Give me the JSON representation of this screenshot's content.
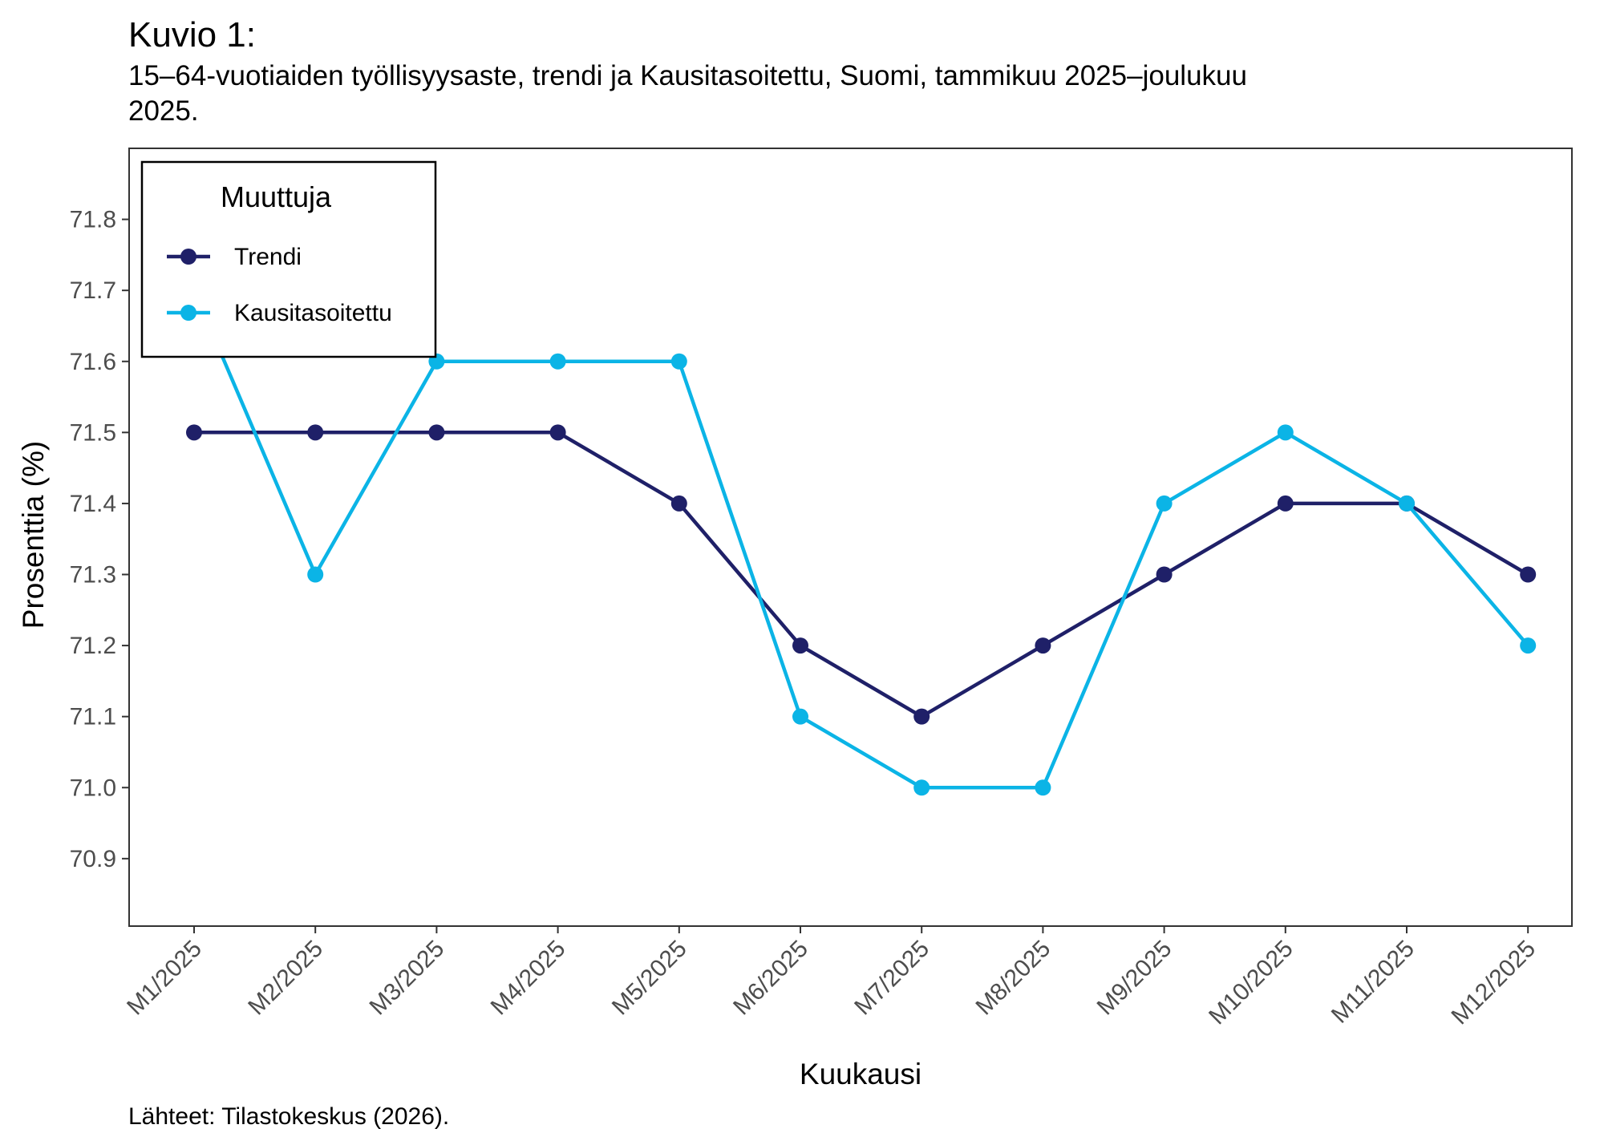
{
  "figure": {
    "title": "Kuvio 1:",
    "subtitle": "15–64-vuotiaiden työllisyysaste, trendi ja Kausitasoitettu, Suomi, tammikuu 2025–joulukuu 2025.",
    "caption": "Lähteet: Tilastokeskus (2026)."
  },
  "chart_data": {
    "type": "line",
    "title": "Kuvio 1:",
    "subtitle": "15–64-vuotiaiden työllisyysaste, trendi ja Kausitasoitettu, Suomi, tammikuu 2025–joulukuu 2025.",
    "xlabel": "Kuukausi",
    "ylabel": "Prosenttia (%)",
    "categories": [
      "M1/2025",
      "M2/2025",
      "M3/2025",
      "M4/2025",
      "M5/2025",
      "M6/2025",
      "M7/2025",
      "M8/2025",
      "M9/2025",
      "M10/2025",
      "M11/2025",
      "M12/2025"
    ],
    "ylim": [
      70.805,
      71.9
    ],
    "yticks": [
      "70.9",
      "71.0",
      "71.1",
      "71.2",
      "71.3",
      "71.4",
      "71.5",
      "71.6",
      "71.7",
      "71.8"
    ],
    "grid": false,
    "legend": {
      "title": "Muuttuja",
      "position": "top-left"
    },
    "series": [
      {
        "name": "Trendi",
        "color": "#1f2068",
        "values": [
          71.5,
          71.5,
          71.5,
          71.5,
          71.4,
          71.2,
          71.1,
          71.2,
          71.3,
          71.4,
          71.4,
          71.3
        ]
      },
      {
        "name": "Kausitasoitettu",
        "color": "#0bb4e6",
        "values": [
          71.7,
          71.3,
          71.6,
          71.6,
          71.6,
          71.1,
          71.0,
          71.0,
          71.4,
          71.5,
          71.4,
          71.2
        ]
      }
    ]
  }
}
